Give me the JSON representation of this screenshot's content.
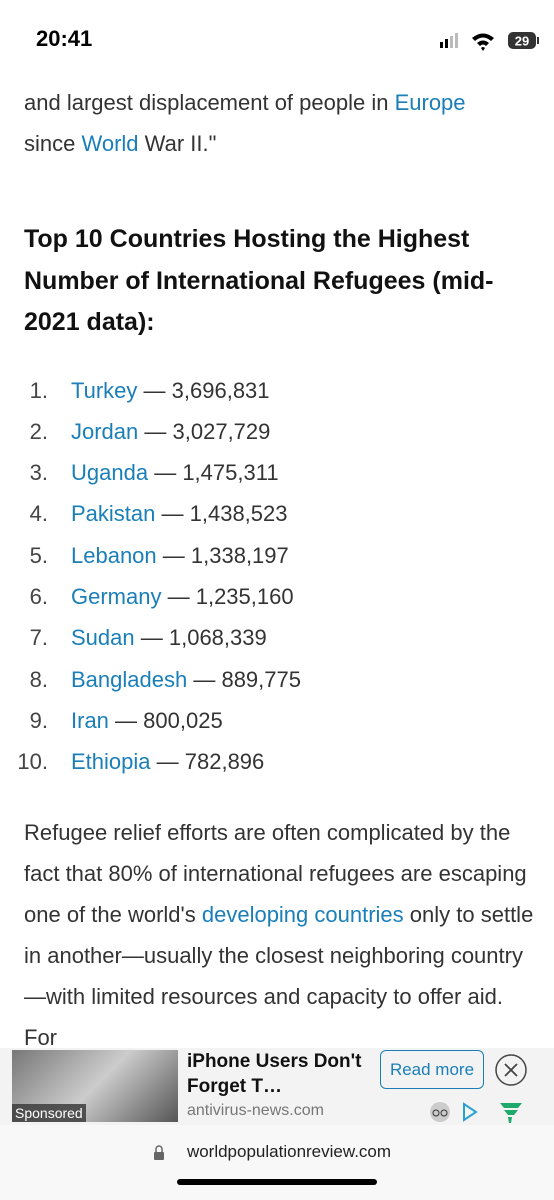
{
  "status_bar": {
    "time": "20:41",
    "battery": "29"
  },
  "article": {
    "intro": [
      "and largest displacement of people in ",
      "Europe",
      " since ",
      "World",
      " War II.\""
    ],
    "heading": "Top 10 Countries Hosting the Highest Number of International Refugees (mid-2021 data):",
    "list": [
      {
        "marker": "1.",
        "country": "Turkey",
        "value": "— 3,696,831"
      },
      {
        "marker": "2.",
        "country": "Jordan",
        "value": "— 3,027,729"
      },
      {
        "marker": "3.",
        "country": "Uganda",
        "value": "— 1,475,311"
      },
      {
        "marker": "4.",
        "country": "Pakistan",
        "value": "— 1,438,523"
      },
      {
        "marker": "5.",
        "country": "Lebanon",
        "value": "— 1,338,197"
      },
      {
        "marker": "6.",
        "country": "Germany",
        "value": "— 1,235,160"
      },
      {
        "marker": "7.",
        "country": "Sudan",
        "value": "— 1,068,339"
      },
      {
        "marker": "8.",
        "country": "Bangladesh",
        "value": "— 889,775"
      },
      {
        "marker": "9.",
        "country": "Iran",
        "value": "— 800,025"
      },
      {
        "marker": "10.",
        "country": "Ethiopia",
        "value": "— 782,896"
      }
    ],
    "paragraph": [
      "Refugee relief efforts are often complicated by the fact that 80% of international refugees are escaping one of the world's ",
      "developing countries",
      " only to settle in another—usually the closest neighboring country—with limited resources and capacity to offer aid. For"
    ]
  },
  "ad": {
    "title": "iPhone Users Don't Forget T…",
    "domain": "antivirus-news.com",
    "button": "Read more",
    "label": "Sponsored"
  },
  "address_bar": {
    "url": "worldpopulationreview.com"
  }
}
